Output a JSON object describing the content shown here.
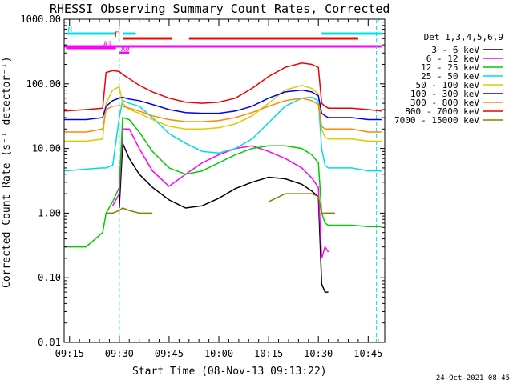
{
  "chart_data": {
    "type": "line",
    "title": "RHESSI Observing Summary Count Rates, Corrected",
    "xlabel": "Start Time (08-Nov-13 09:13:22)",
    "ylabel": "Corrected Count Rate (s⁻¹ detector⁻¹)",
    "yscale": "log",
    "ylim": [
      0.01,
      1000
    ],
    "y_ticks": [
      "0.01",
      "0.10",
      "1.00",
      "10.00",
      "100.00",
      "1000.00"
    ],
    "x_ticks": [
      "09:15",
      "09:30",
      "09:45",
      "10:00",
      "10:15",
      "10:30",
      "10:45"
    ],
    "xlim_minutes": [
      13.37,
      110
    ],
    "legend_title": "Det 1,3,4,5,6,9",
    "legend_position": "right",
    "timestamp": "24-Oct-2021 08:45",
    "flags": [
      {
        "label": "N",
        "color": "#00e0e0",
        "segments": [
          [
            14,
            29
          ],
          [
            31,
            35
          ],
          [
            91,
            109
          ]
        ]
      },
      {
        "label": "F",
        "color": "#ff0000",
        "segments": [
          [
            31,
            46
          ],
          [
            51,
            102
          ]
        ]
      },
      {
        "label": "A1",
        "color": "#ff00ff",
        "segments": [
          [
            14,
            29
          ]
        ]
      },
      {
        "label": "A0",
        "color": "#ff00ff",
        "segments": [
          [
            30,
            33
          ]
        ]
      },
      {
        "label": "",
        "color": "#ff00ff",
        "segments": [
          [
            13.5,
            109
          ]
        ]
      }
    ],
    "vlines": [
      {
        "x": 30,
        "color": "#00e0e0",
        "dash": true
      },
      {
        "x": 92,
        "color": "#00e0e0",
        "dash": false
      },
      {
        "x": 107.5,
        "color": "#00e0e0",
        "dash": true
      }
    ],
    "x": [
      13.5,
      20,
      25,
      26,
      28,
      30,
      31,
      33,
      36,
      40,
      45,
      50,
      55,
      60,
      65,
      70,
      75,
      80,
      85,
      88,
      90,
      91,
      92,
      93,
      95,
      100,
      105,
      109
    ],
    "series": [
      {
        "name": "3 - 6 keV",
        "color": "#000000",
        "values": [
          null,
          null,
          null,
          null,
          null,
          1.2,
          12,
          7,
          4,
          2.5,
          1.6,
          1.2,
          1.3,
          1.7,
          2.4,
          3,
          3.6,
          3.4,
          2.8,
          2.2,
          1.8,
          0.08,
          0.06,
          0.06,
          null,
          null,
          null,
          null
        ]
      },
      {
        "name": "6 - 12 keV",
        "color": "#ff00ff",
        "values": [
          null,
          null,
          null,
          null,
          1.3,
          2,
          20,
          20,
          10,
          4.5,
          2.6,
          4,
          6,
          8,
          10,
          11,
          9,
          7,
          5,
          3.5,
          2.5,
          0.2,
          0.3,
          0.25,
          null,
          null,
          null,
          null
        ]
      },
      {
        "name": "12 - 25 keV",
        "color": "#00cc00",
        "values": [
          0.3,
          0.3,
          0.5,
          1,
          1.5,
          2.5,
          30,
          28,
          18,
          9,
          5,
          4,
          4.5,
          6,
          8,
          10,
          11,
          11,
          10,
          8,
          6,
          1.0,
          0.7,
          0.65,
          0.65,
          0.65,
          0.62,
          0.62
        ]
      },
      {
        "name": "25 - 50 keV",
        "color": "#00dddd",
        "values": [
          4.5,
          4.8,
          5,
          5,
          5.5,
          30,
          55,
          50,
          45,
          30,
          17,
          12,
          9,
          8.5,
          10,
          14,
          25,
          45,
          60,
          62,
          55,
          10,
          5.5,
          5,
          5,
          5,
          4.5,
          4.5
        ]
      },
      {
        "name": "50 - 100 keV",
        "color": "#ddcc00",
        "values": [
          13,
          13,
          14,
          50,
          80,
          90,
          50,
          40,
          35,
          28,
          22,
          20,
          20,
          21,
          24,
          32,
          50,
          80,
          95,
          85,
          70,
          20,
          15,
          14,
          14,
          14,
          13,
          13
        ]
      },
      {
        "name": "100 - 300 keV",
        "color": "#0000ee",
        "values": [
          28,
          28,
          30,
          45,
          55,
          60,
          62,
          58,
          55,
          48,
          40,
          36,
          35,
          35,
          38,
          45,
          60,
          75,
          80,
          75,
          65,
          35,
          32,
          30,
          30,
          30,
          28,
          28
        ]
      },
      {
        "name": "300 - 800 keV",
        "color": "#ff8800",
        "values": [
          18,
          18,
          20,
          40,
          45,
          46,
          45,
          42,
          38,
          32,
          28,
          26,
          26,
          27,
          30,
          36,
          45,
          55,
          60,
          55,
          48,
          22,
          20,
          20,
          20,
          20,
          18,
          18
        ]
      },
      {
        "name": "800 - 7000 keV",
        "color": "#ee0000",
        "values": [
          38,
          40,
          42,
          150,
          160,
          155,
          140,
          120,
          95,
          75,
          60,
          52,
          50,
          52,
          60,
          85,
          130,
          180,
          210,
          200,
          180,
          50,
          45,
          42,
          42,
          42,
          40,
          38
        ]
      },
      {
        "name": "7000 - 15000 keV",
        "color": "#808000",
        "values": [
          null,
          null,
          null,
          1,
          1,
          1.1,
          1.2,
          1.1,
          1,
          1,
          null,
          null,
          null,
          null,
          null,
          null,
          1.5,
          2,
          2,
          2,
          1.8,
          1,
          1,
          1,
          1,
          null,
          null,
          null
        ]
      }
    ]
  }
}
